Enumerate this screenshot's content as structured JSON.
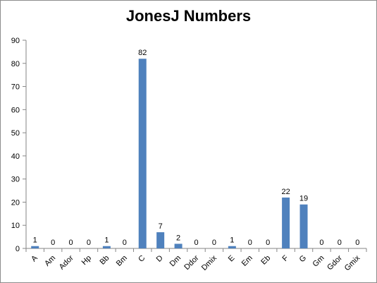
{
  "chart_data": {
    "type": "bar",
    "title": "JonesJ Numbers",
    "categories": [
      "A",
      "Am",
      "Ador",
      "Hp",
      "Bb",
      "Bm",
      "C",
      "D",
      "Dm",
      "Ddor",
      "Dmix",
      "E",
      "Em",
      "Eb",
      "F",
      "G",
      "Gm",
      "Gdor",
      "Gmix"
    ],
    "values": [
      1,
      0,
      0,
      0,
      1,
      0,
      82,
      7,
      2,
      0,
      0,
      1,
      0,
      0,
      22,
      19,
      0,
      0,
      0
    ],
    "ylim": [
      0,
      90
    ],
    "yticks": [
      0,
      10,
      20,
      30,
      40,
      50,
      60,
      70,
      80,
      90
    ],
    "grid": false,
    "legend": "none",
    "bar_color": "#4f81bd"
  }
}
